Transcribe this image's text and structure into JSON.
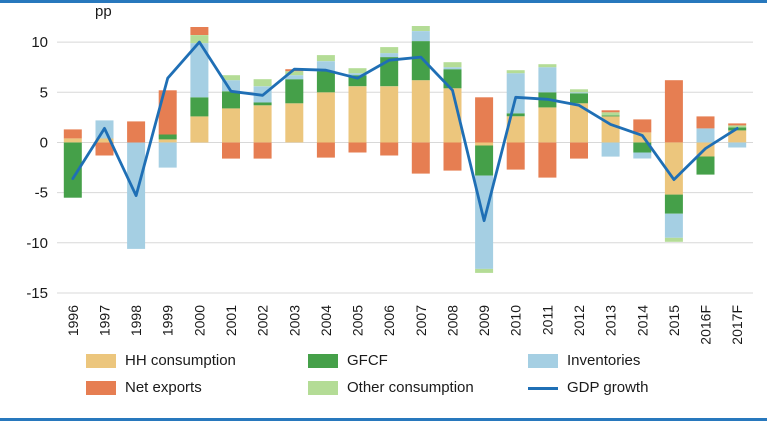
{
  "frame": {
    "border_color": "#2878bd",
    "background": "#ffffff"
  },
  "chart_data": {
    "type": "bar",
    "subtype": "stacked-bar-with-line-overlay",
    "title": "",
    "xlabel": "",
    "ylabel": "pp",
    "ylim": [
      -15,
      12.5
    ],
    "yticks": [
      -15,
      -10,
      -5,
      0,
      5,
      10
    ],
    "grid": true,
    "legend_position": "bottom",
    "gridline_color": "#d8d8d8",
    "text_color": "#1a1a1a",
    "categories": [
      "1996",
      "1997",
      "1998",
      "1999",
      "2000",
      "2001",
      "2002",
      "2003",
      "2004",
      "2005",
      "2006",
      "2007",
      "2008",
      "2009",
      "2010",
      "2011",
      "2012",
      "2013",
      "2014",
      "2015",
      "2016F",
      "2017F"
    ],
    "series": [
      {
        "name": "HH consumption",
        "color": "#ecc67d",
        "values": [
          0.4,
          0.4,
          0,
          0.3,
          2.6,
          3.4,
          3.7,
          3.9,
          5.0,
          5.6,
          5.6,
          6.2,
          5.4,
          -0.3,
          2.6,
          3.5,
          3.9,
          2.6,
          1.0,
          -5.2,
          -1.4,
          1.2
        ]
      },
      {
        "name": "GFCF",
        "color": "#45a049",
        "values": [
          -5.5,
          0,
          0,
          0.5,
          1.9,
          1.7,
          0.3,
          2.4,
          2.1,
          1.1,
          2.9,
          3.9,
          1.9,
          -3.0,
          0.3,
          1.5,
          1.0,
          0.1,
          -1.0,
          -1.9,
          -1.8,
          0.3
        ]
      },
      {
        "name": "Inventories",
        "color": "#a5cfe3",
        "values": [
          0,
          1.8,
          -10.6,
          -2.5,
          5.4,
          1.1,
          1.6,
          0.4,
          1.0,
          0.2,
          0.4,
          1.0,
          0.2,
          -9.3,
          4.0,
          2.5,
          0.1,
          -1.4,
          -0.6,
          -2.4,
          1.4,
          -0.5
        ]
      },
      {
        "name": "Other consumption",
        "color": "#b4dc96",
        "values": [
          0,
          0,
          0,
          0,
          0.8,
          0.5,
          0.7,
          0.4,
          0.6,
          0.5,
          0.6,
          0.5,
          0.5,
          -0.4,
          0.3,
          0.3,
          0.3,
          0.3,
          0,
          -0.4,
          0,
          0.2
        ]
      },
      {
        "name": "Net exports",
        "color": "#e67e52",
        "values": [
          0.9,
          -1.3,
          2.1,
          4.4,
          0.8,
          -1.6,
          -1.6,
          0.2,
          -1.5,
          -1.0,
          -1.3,
          -3.1,
          -2.8,
          4.5,
          -2.7,
          -3.5,
          -1.6,
          0.2,
          1.3,
          6.2,
          1.2,
          0.2
        ]
      }
    ],
    "line": {
      "name": "GDP growth",
      "color": "#1f6fb5",
      "values": [
        -3.6,
        1.4,
        -5.3,
        6.4,
        10.0,
        5.1,
        4.7,
        7.3,
        7.2,
        6.4,
        8.2,
        8.5,
        5.2,
        -7.8,
        4.5,
        4.3,
        3.7,
        1.8,
        0.7,
        -3.7,
        -0.6,
        1.4
      ]
    }
  }
}
